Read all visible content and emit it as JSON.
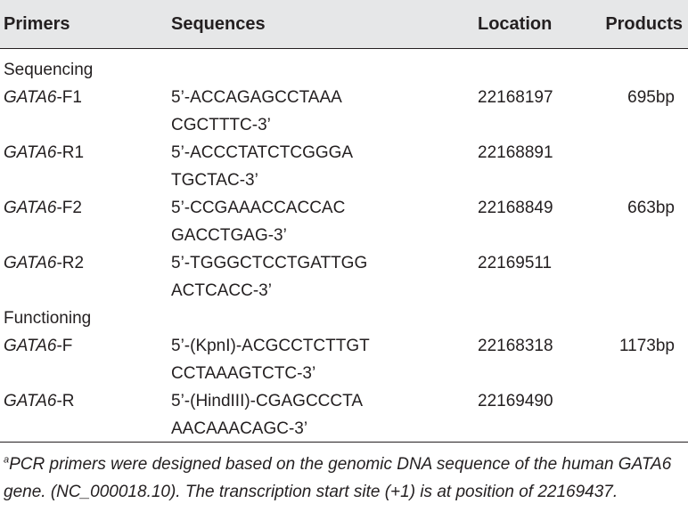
{
  "header": {
    "primers": "Primers",
    "sequences": "Sequences",
    "location": "Location",
    "products": "Products"
  },
  "sections": [
    {
      "title": "Sequencing",
      "rows": [
        {
          "gene": "GATA6",
          "suffix": "-F1",
          "seq1": "5’-ACCAGAGCCTAAA",
          "seq2": "CGCTTTC-3’",
          "location": "22168197",
          "product": "695bp"
        },
        {
          "gene": "GATA6",
          "suffix": "-R1",
          "seq1": "5’-ACCCTATCTCGGGA",
          "seq2": "TGCTAC-3’",
          "location": "22168891",
          "product": ""
        },
        {
          "gene": "GATA6",
          "suffix": "-F2",
          "seq1": "5’-CCGAAACCACCAC",
          "seq2": "GACCTGAG-3’",
          "location": "22168849",
          "product": "663bp"
        },
        {
          "gene": "GATA6",
          "suffix": "-R2",
          "seq1": "5’-TGGGCTCCTGATTGG",
          "seq2": "ACTCACC-3’",
          "location": "22169511",
          "product": ""
        }
      ]
    },
    {
      "title": "Functioning",
      "rows": [
        {
          "gene": "GATA6",
          "suffix": "-F",
          "seq1": "5’-(KpnI)-ACGCCTCTTGT",
          "seq2": "CCTAAAGTCTC-3’",
          "location": "22168318",
          "product": "1173bp"
        },
        {
          "gene": "GATA6",
          "suffix": "-R",
          "seq1": "5’-(HindIII)-CGAGCCCTA",
          "seq2": "AACAAACAGC-3’",
          "location": "22169490",
          "product": ""
        }
      ]
    }
  ],
  "footnote": {
    "marker": "a",
    "text": "PCR primers were designed based on the genomic DNA sequence of the human GATA6 gene. (NC_000018.10). The transcription start site (+1) is at position of 22169437."
  }
}
